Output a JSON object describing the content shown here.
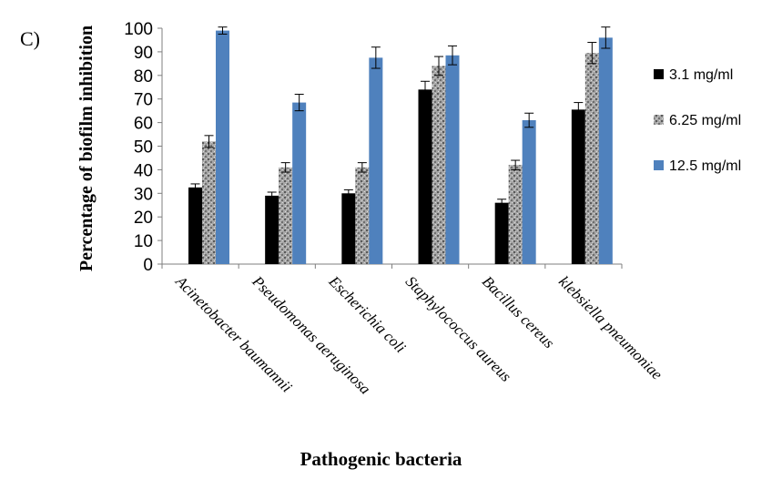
{
  "panel_label": "C)",
  "chart_data": {
    "type": "bar",
    "ylabel": "Percentage of biofilm inhibition",
    "xlabel": "Pathogenic bacteria",
    "ylim": [
      0,
      100
    ],
    "yticks": [
      0,
      10,
      20,
      30,
      40,
      50,
      60,
      70,
      80,
      90,
      100
    ],
    "grid": false,
    "legend_position": "right",
    "categories": [
      "Acinetobacter baumannii",
      "Pseudomonas aeruginosa",
      "Escherichia coli",
      "Staphylococcus aureus",
      "Bacillus cereus",
      "klebsiella pneumoniae"
    ],
    "series": [
      {
        "name": "3.1 mg/ml",
        "color": "#000000",
        "pattern": "solid",
        "values": [
          32.5,
          29,
          30,
          74,
          26,
          65.5
        ],
        "errors": [
          1.5,
          1.5,
          1.5,
          3.5,
          1.5,
          3
        ]
      },
      {
        "name": "6.25 mg/ml",
        "color": "#8c8c8c",
        "pattern": "speckled",
        "values": [
          52,
          41,
          41,
          84,
          42,
          89.5
        ],
        "errors": [
          2.5,
          2,
          2,
          4,
          2,
          4.5
        ]
      },
      {
        "name": "12.5 mg/ml",
        "color": "#4f81bd",
        "pattern": "solid",
        "values": [
          99,
          68.5,
          87.5,
          88.5,
          61,
          96
        ],
        "errors": [
          1.5,
          3.5,
          4.5,
          4,
          3,
          4.5
        ]
      }
    ]
  }
}
